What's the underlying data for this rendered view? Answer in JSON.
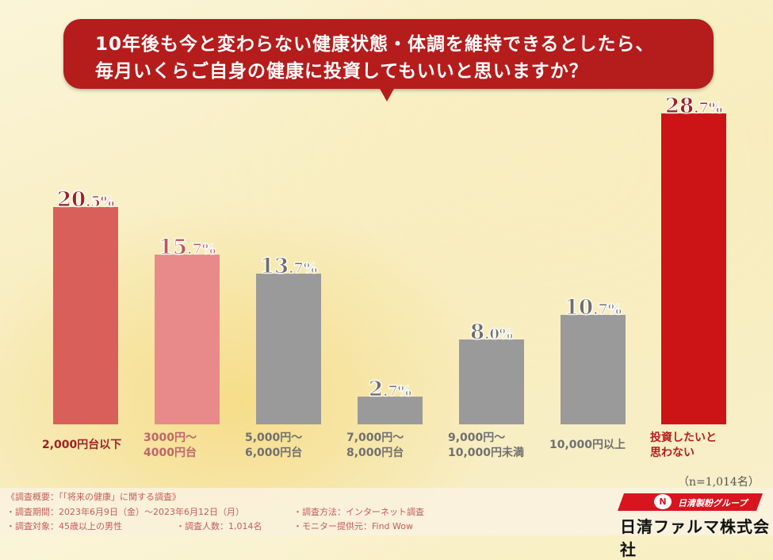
{
  "title": {
    "line1": "10年後も今と変わらない健康状態・体調を維持できるとしたら、",
    "line2": "毎月いくらご自身の健康に投資してもいいと思いますか？"
  },
  "chart_data": {
    "type": "bar",
    "title": "10年後も今と変わらない健康状態・体調を維持できるとしたら、毎月いくらご自身の健康に投資してもいいと思いますか？",
    "categories": [
      "2,000円台以下",
      "3000円〜4000円台",
      "5,000円〜6,000円台",
      "7,000円〜8,000円台",
      "9,000円〜10,000円未満",
      "10,000円以上",
      "投資したいと思わない"
    ],
    "values": [
      20.5,
      15.7,
      13.7,
      2.7,
      8.0,
      10.7,
      28.7
    ],
    "unit": "%",
    "xlabel": "",
    "ylabel": "",
    "ylim": [
      0,
      30
    ],
    "grid": false,
    "legend": false,
    "colors": [
      "#d95f5a",
      "#e98a8a",
      "#9a9a9a",
      "#9a9a9a",
      "#9a9a9a",
      "#9a9a9a",
      "#cc1417"
    ],
    "sample_size": "(n=1,014名)"
  },
  "bars": [
    {
      "int": "20",
      "dec": ".5",
      "pct": "%",
      "label1": "2,000円台以下",
      "label2": "",
      "color": "#d95f5a",
      "text_color": "#9e2226",
      "label_color": "#9e2226",
      "x": 67,
      "top": 261
    },
    {
      "int": "15",
      "dec": ".7",
      "pct": "%",
      "label1": "3000円〜",
      "label2": "4000円台",
      "color": "#e98a8a",
      "text_color": "#c0565b",
      "label_color": "#c0656a",
      "x": 195,
      "top": 321
    },
    {
      "int": "13",
      "dec": ".7",
      "pct": "%",
      "label1": "5,000円〜",
      "label2": "6,000円台",
      "color": "#9a9a9a",
      "text_color": "#6e6e6e",
      "label_color": "#707070",
      "x": 323,
      "top": 345
    },
    {
      "int": "2",
      "dec": ".7",
      "pct": "%",
      "label1": "7,000円〜",
      "label2": "8,000円台",
      "color": "#9a9a9a",
      "text_color": "#6e6e6e",
      "label_color": "#707070",
      "x": 451,
      "top": 500
    },
    {
      "int": "8",
      "dec": ".0",
      "pct": "%",
      "label1": "9,000円〜",
      "label2": "10,000円未満",
      "color": "#9a9a9a",
      "text_color": "#6e6e6e",
      "label_color": "#707070",
      "x": 579,
      "top": 428
    },
    {
      "int": "10",
      "dec": ".7",
      "pct": "%",
      "label1": "10,000円以上",
      "label2": "",
      "color": "#9a9a9a",
      "text_color": "#6e6e6e",
      "label_color": "#707070",
      "x": 707,
      "top": 397
    },
    {
      "int": "28",
      "dec": ".7",
      "pct": "%",
      "label1": "投資したいと",
      "label2": "思わない",
      "color": "#cc1417",
      "text_color": "#9e2226",
      "label_color": "#b51c1c",
      "x": 834,
      "top": 143
    }
  ],
  "sample_size": "（n=1,014名）",
  "notes": {
    "heading": "《調査概要：「「将来の健康」に関する調査》",
    "period": "・調査期間：2023年6月9日（金）〜2023年6月12日（月）",
    "method": "・調査方法：インターネット調査",
    "target": "・調査対象：45歳以上の男性",
    "count": "・調査人数：1,014名",
    "monitor": "・モニター提供元：Find Wow"
  },
  "logo": {
    "group": "日清製粉グループ",
    "company": "日清ファルマ株式会社",
    "brand_color": "#d9141e"
  }
}
